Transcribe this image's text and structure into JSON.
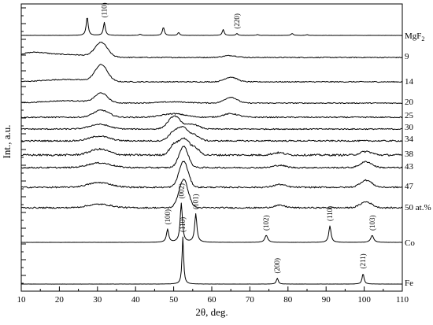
{
  "chart_data": {
    "type": "line",
    "xlabel": "2θ, deg.",
    "ylabel": "Int., a.u.",
    "xlim": [
      10,
      110
    ],
    "x_ticks": [
      10,
      20,
      30,
      40,
      50,
      60,
      70,
      80,
      90,
      100,
      110
    ],
    "grid": false,
    "series": [
      {
        "name": "MgF2",
        "label_main": "MgF",
        "label_sub": "2",
        "baseline": 0.63,
        "amplitude": 0.5,
        "kind": "crystal",
        "peaks": [
          {
            "x": 27.3,
            "h": 0.8,
            "w": 0.3
          },
          {
            "x": 31.8,
            "h": 0.55,
            "w": 0.3
          },
          {
            "x": 41.2,
            "h": 0.05,
            "w": 0.35
          },
          {
            "x": 47.3,
            "h": 0.35,
            "w": 0.3
          },
          {
            "x": 51.3,
            "h": 0.12,
            "w": 0.3
          },
          {
            "x": 63.0,
            "h": 0.25,
            "w": 0.3
          },
          {
            "x": 66.6,
            "h": 0.08,
            "w": 0.3
          },
          {
            "x": 72.0,
            "h": 0.04,
            "w": 0.3
          },
          {
            "x": 81.1,
            "h": 0.08,
            "w": 0.35
          },
          {
            "x": 85.0,
            "h": 0.03,
            "w": 0.35
          }
        ]
      },
      {
        "name": "9",
        "baseline": 0.4,
        "amplitude": 0.5,
        "kind": "film",
        "noise": 0.02,
        "peaks": [
          {
            "x": 31.0,
            "h": 0.6,
            "w": 1.6
          },
          {
            "x": 64.8,
            "h": 0.08,
            "w": 1.8
          },
          {
            "x": 13,
            "h": 0.18,
            "w": 3.5
          },
          {
            "x": 22,
            "h": 0.12,
            "w": 6
          }
        ]
      },
      {
        "name": "14",
        "baseline": 0.26,
        "amplitude": 0.5,
        "kind": "film",
        "noise": 0.02,
        "peaks": [
          {
            "x": 31.0,
            "h": 0.7,
            "w": 1.6
          },
          {
            "x": 65.0,
            "h": 0.2,
            "w": 1.6
          },
          {
            "x": 22,
            "h": 0.1,
            "w": 6
          }
        ]
      },
      {
        "name": "20",
        "baseline": 0.52,
        "amplitude": 0.5,
        "kind": "film",
        "noise": 0.02,
        "peaks": [
          {
            "x": 31.0,
            "h": 0.4,
            "w": 1.6
          },
          {
            "x": 65.0,
            "h": 0.25,
            "w": 1.6
          },
          {
            "x": 22,
            "h": 0.1,
            "w": 6
          },
          {
            "x": 50,
            "h": 0.05,
            "w": 4
          }
        ]
      },
      {
        "name": "25",
        "baseline": 0.6,
        "amplitude": 0.5,
        "kind": "film",
        "noise": 0.025,
        "peaks": [
          {
            "x": 31.0,
            "h": 0.3,
            "w": 2.0
          },
          {
            "x": 50.0,
            "h": 0.15,
            "w": 3.0
          },
          {
            "x": 65.0,
            "h": 0.15,
            "w": 2.0
          }
        ]
      },
      {
        "name": "30",
        "baseline": 0.58,
        "amplitude": 0.5,
        "kind": "film",
        "noise": 0.025,
        "peaks": [
          {
            "x": 30.5,
            "h": 0.2,
            "w": 2.5
          },
          {
            "x": 50.2,
            "h": 0.55,
            "w": 1.6
          },
          {
            "x": 55.0,
            "h": 0.2,
            "w": 1.6
          }
        ]
      },
      {
        "name": "34",
        "baseline": 0.6,
        "amplitude": 0.5,
        "kind": "film",
        "noise": 0.03,
        "peaks": [
          {
            "x": 30.5,
            "h": 0.2,
            "w": 2.5
          },
          {
            "x": 50.2,
            "h": 0.4,
            "w": 1.4
          },
          {
            "x": 52.6,
            "h": 0.45,
            "w": 1.2
          },
          {
            "x": 55.3,
            "h": 0.25,
            "w": 1.4
          }
        ]
      },
      {
        "name": "38",
        "baseline": 0.66,
        "amplitude": 0.5,
        "kind": "film",
        "noise": 0.04,
        "peaks": [
          {
            "x": 30.5,
            "h": 0.25,
            "w": 2.5
          },
          {
            "x": 50.2,
            "h": 0.45,
            "w": 1.2
          },
          {
            "x": 52.8,
            "h": 0.65,
            "w": 1.2
          },
          {
            "x": 55.5,
            "h": 0.3,
            "w": 1.2
          },
          {
            "x": 77.5,
            "h": 0.1,
            "w": 1.5
          },
          {
            "x": 100.5,
            "h": 0.15,
            "w": 1.5
          }
        ]
      },
      {
        "name": "43",
        "baseline": 0.58,
        "amplitude": 0.5,
        "kind": "film",
        "noise": 0.03,
        "peaks": [
          {
            "x": 30.5,
            "h": 0.2,
            "w": 3
          },
          {
            "x": 52.6,
            "h": 0.9,
            "w": 1.2
          },
          {
            "x": 77.8,
            "h": 0.1,
            "w": 1.5
          },
          {
            "x": 100.5,
            "h": 0.25,
            "w": 1.5
          }
        ]
      },
      {
        "name": "47",
        "baseline": 0.6,
        "amplitude": 0.5,
        "kind": "film",
        "noise": 0.03,
        "peaks": [
          {
            "x": 30.5,
            "h": 0.2,
            "w": 3
          },
          {
            "x": 52.6,
            "h": 1.1,
            "w": 1.2
          },
          {
            "x": 77.8,
            "h": 0.12,
            "w": 1.5
          },
          {
            "x": 100.5,
            "h": 0.3,
            "w": 1.5
          }
        ]
      },
      {
        "name": "50 at.%",
        "baseline": 0.58,
        "amplitude": 0.5,
        "kind": "film",
        "noise": 0.03,
        "peaks": [
          {
            "x": 30.5,
            "h": 0.15,
            "w": 3
          },
          {
            "x": 52.6,
            "h": 1.2,
            "w": 1.2
          },
          {
            "x": 77.8,
            "h": 0.1,
            "w": 1.5
          },
          {
            "x": 100.5,
            "h": 0.25,
            "w": 1.5
          }
        ]
      },
      {
        "name": "Co",
        "baseline": 0.4,
        "amplitude": 0.5,
        "kind": "crystal",
        "peaks": [
          {
            "x": 48.4,
            "h": 0.55,
            "w": 0.35
          },
          {
            "x": 52.0,
            "h": 1.65,
            "w": 0.35
          },
          {
            "x": 55.8,
            "h": 1.2,
            "w": 0.35
          },
          {
            "x": 74.3,
            "h": 0.3,
            "w": 0.45
          },
          {
            "x": 91.0,
            "h": 0.7,
            "w": 0.35
          },
          {
            "x": 102.1,
            "h": 0.3,
            "w": 0.45
          }
        ]
      },
      {
        "name": "Fe",
        "baseline": 0.45,
        "amplitude": 0.5,
        "kind": "crystal",
        "peaks": [
          {
            "x": 52.4,
            "h": 2.0,
            "w": 0.25
          },
          {
            "x": 77.2,
            "h": 0.25,
            "w": 0.3
          },
          {
            "x": 99.7,
            "h": 0.45,
            "w": 0.3
          }
        ]
      }
    ],
    "annotations": [
      {
        "text": "(110)",
        "x": 31.8,
        "series": "MgF2"
      },
      {
        "text": "(220)",
        "x": 66.6,
        "series": "MgF2"
      },
      {
        "text": "(100)",
        "x": 48.4,
        "series": "Co"
      },
      {
        "text": "(002)",
        "x": 52.0,
        "series": "Co"
      },
      {
        "text": "(101)",
        "x": 55.8,
        "series": "Co"
      },
      {
        "text": "(102)",
        "x": 74.3,
        "series": "Co"
      },
      {
        "text": "(110)",
        "x": 91.0,
        "series": "Co"
      },
      {
        "text": "(103)",
        "x": 102.1,
        "series": "Co"
      },
      {
        "text": "(110)",
        "x": 52.4,
        "series": "Fe"
      },
      {
        "text": "(200)",
        "x": 77.2,
        "series": "Fe"
      },
      {
        "text": "(211)",
        "x": 99.7,
        "series": "Fe"
      }
    ]
  }
}
